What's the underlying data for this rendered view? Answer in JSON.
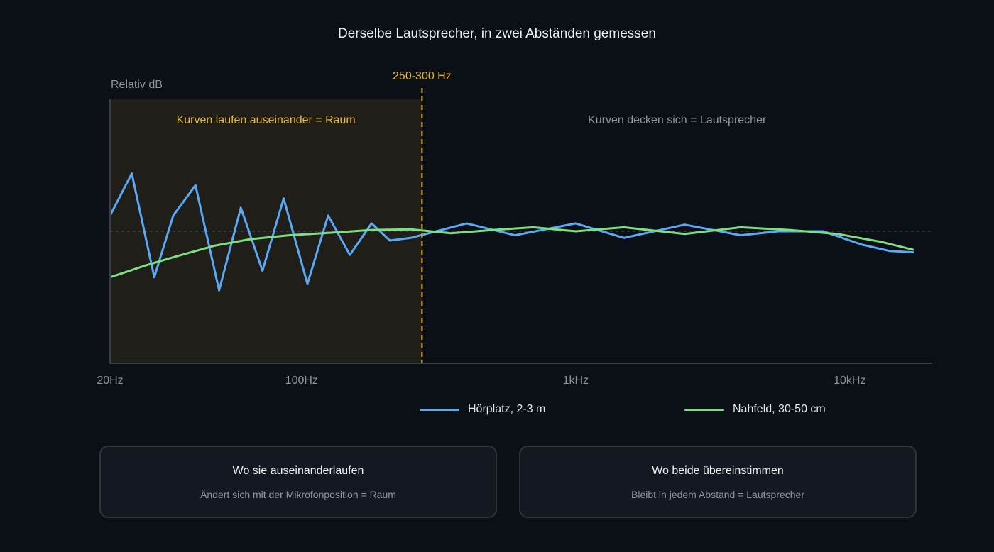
{
  "chart_data": {
    "type": "line",
    "title": "Derselbe Lautsprecher, in zwei Abständen gemessen",
    "ylabel": "Relativ dB",
    "xscale": "log",
    "xlim": [
      20,
      20000
    ],
    "ylim": [
      -10,
      10
    ],
    "reference_line_y": 0,
    "x_ticks": [
      {
        "value": 20,
        "label": "20Hz"
      },
      {
        "value": 100,
        "label": "100Hz"
      },
      {
        "value": 1000,
        "label": "1kHz"
      },
      {
        "value": 10000,
        "label": "10kHz"
      }
    ],
    "marker": {
      "x": 275,
      "label": "250-300 Hz",
      "color": "#e8b83a"
    },
    "regions": [
      {
        "from": 20,
        "to": 275,
        "label": "Kurven laufen auseinander = Raum",
        "color": "#e8b83a",
        "shaded": true
      },
      {
        "from": 275,
        "to": 20000,
        "label": "Kurven decken sich = Lautsprecher",
        "color": "#8f959e",
        "shaded": false
      }
    ],
    "series": [
      {
        "name": "Hörplatz, 2-3 m",
        "color": "#5aa9f6",
        "points": [
          [
            20,
            1.2
          ],
          [
            24,
            4.4
          ],
          [
            29,
            -3.5
          ],
          [
            34,
            1.2
          ],
          [
            41,
            3.5
          ],
          [
            50,
            -4.5
          ],
          [
            60,
            1.8
          ],
          [
            72,
            -3.0
          ],
          [
            86,
            2.5
          ],
          [
            105,
            -4.0
          ],
          [
            125,
            1.2
          ],
          [
            150,
            -1.8
          ],
          [
            180,
            0.6
          ],
          [
            210,
            -0.7
          ],
          [
            250,
            -0.5
          ],
          [
            400,
            0.6
          ],
          [
            600,
            -0.3
          ],
          [
            1000,
            0.6
          ],
          [
            1500,
            -0.5
          ],
          [
            2500,
            0.5
          ],
          [
            4000,
            -0.3
          ],
          [
            5500,
            0.0
          ],
          [
            8000,
            0.0
          ],
          [
            11000,
            -1.0
          ],
          [
            14000,
            -1.5
          ],
          [
            17000,
            -1.6
          ]
        ]
      },
      {
        "name": "Nahfeld, 30-50 cm",
        "color": "#7ddf82",
        "points": [
          [
            20,
            -3.5
          ],
          [
            27,
            -2.6
          ],
          [
            35,
            -1.9
          ],
          [
            48,
            -1.1
          ],
          [
            65,
            -0.6
          ],
          [
            90,
            -0.3
          ],
          [
            130,
            -0.1
          ],
          [
            180,
            0.1
          ],
          [
            250,
            0.15
          ],
          [
            350,
            -0.15
          ],
          [
            500,
            0.1
          ],
          [
            700,
            0.3
          ],
          [
            1000,
            0.0
          ],
          [
            1500,
            0.3
          ],
          [
            2500,
            -0.2
          ],
          [
            4000,
            0.3
          ],
          [
            6000,
            0.1
          ],
          [
            9000,
            -0.2
          ],
          [
            13000,
            -0.8
          ],
          [
            17000,
            -1.4
          ]
        ]
      }
    ]
  },
  "legend": [
    {
      "label": "Hörplatz, 2-3 m",
      "color": "#5aa9f6"
    },
    {
      "label": "Nahfeld, 30-50 cm",
      "color": "#7ddf82"
    }
  ],
  "cards": [
    {
      "title": "Wo sie auseinanderlaufen",
      "text": "Ändert sich mit der Mikrofonposition = Raum"
    },
    {
      "title": "Wo beide übereinstimmen",
      "text": "Bleibt in jedem Abstand = Lautsprecher"
    }
  ]
}
